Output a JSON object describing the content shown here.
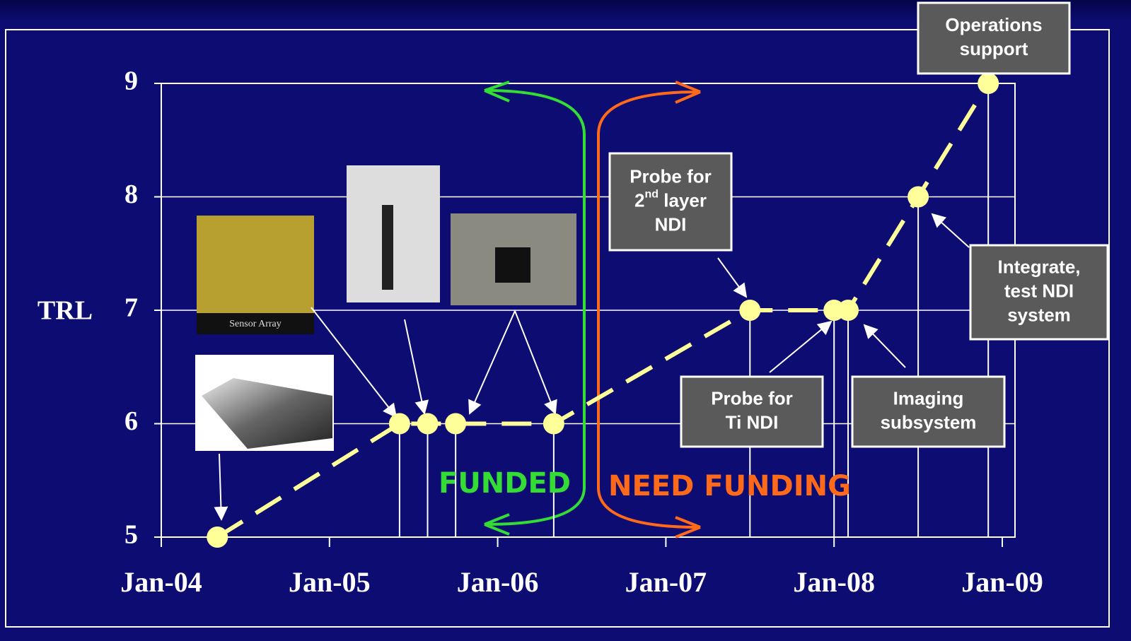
{
  "chart_data": {
    "type": "line",
    "x": [
      "2004-05",
      "2005-06",
      "2005-08",
      "2005-10",
      "2006-05",
      "2007-07",
      "2008-01",
      "2008-02",
      "2008-07",
      "2008-12"
    ],
    "series": [
      {
        "color": "#ffff99",
        "values": [
          5,
          6,
          6,
          6,
          6,
          7,
          7,
          7,
          8,
          9
        ]
      }
    ],
    "xlim": [
      "2004-01",
      "2009-01"
    ],
    "xticks": [
      {
        "value": "2004-01",
        "label": "Jan-04"
      },
      {
        "value": "2005-01",
        "label": "Jan-05"
      },
      {
        "value": "2006-01",
        "label": "Jan-06"
      },
      {
        "value": "2007-01",
        "label": "Jan-07"
      },
      {
        "value": "2008-01",
        "label": "Jan-08"
      },
      {
        "value": "2009-01",
        "label": "Jan-09"
      }
    ],
    "ylim": [
      5,
      9
    ],
    "yticks": [
      5,
      6,
      7,
      8,
      9
    ],
    "ylabel": "TRL",
    "grid": true,
    "phases": [
      {
        "label": "FUNDED",
        "color": "#33dd33"
      },
      {
        "label": "NEED FUNDING",
        "color": "#ff6a1a"
      }
    ],
    "image_caption": "Sensor Array",
    "annotations": [
      {
        "lines": [
          "Operations",
          "support"
        ]
      },
      {
        "lines": [
          "Probe for",
          [
            {
              "text": "2"
            },
            {
              "text": "nd",
              "sup": true
            },
            {
              "text": " layer"
            }
          ],
          "NDI"
        ]
      },
      {
        "lines": [
          "Integrate,",
          "test NDI",
          "system"
        ]
      },
      {
        "lines": [
          "Probe for",
          "Ti NDI"
        ]
      },
      {
        "lines": [
          "Imaging",
          "subsystem"
        ]
      }
    ]
  }
}
